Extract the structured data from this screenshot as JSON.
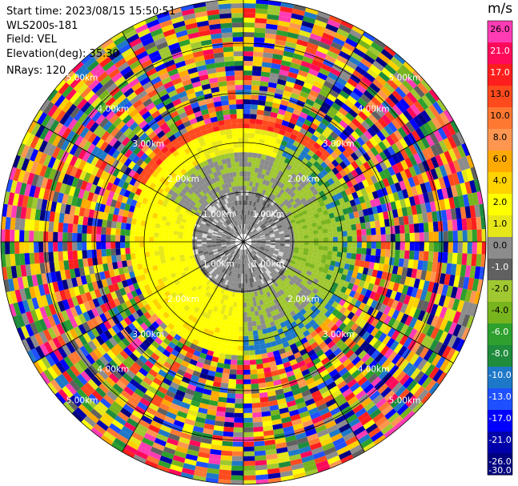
{
  "header": {
    "start_time": "Start time: 2023/08/15 15:50:51",
    "instrument": "WLS200s-181",
    "field": "Field: VEL",
    "elevation": "Elevation(deg): 35.30",
    "nrays": "NRays: 120"
  },
  "colorbar": {
    "unit": "m/s",
    "ticks": [
      "26.0",
      "21.0",
      "17.0",
      "13.0",
      "10.0",
      "8.0",
      "6.0",
      "4.0",
      "2.0",
      "1.0",
      "0.0",
      "-1.0",
      "-2.0",
      "-4.0",
      "-6.0",
      "-8.0",
      "-10.0",
      "-13.0",
      "-17.0",
      "-21.0",
      "-26.0",
      "-30.0"
    ],
    "colors": [
      "#ff3cb4",
      "#ff0a5a",
      "#ff1e1e",
      "#ff4a1e",
      "#ff7832",
      "#ff9650",
      "#ffaa00",
      "#ffd200",
      "#ffff00",
      "#e6e619",
      "#8c8c8c",
      "#606060",
      "#a0c830",
      "#78b41e",
      "#2da02d",
      "#1e8c3c",
      "#1e78c8",
      "#1e50ff",
      "#0000ff",
      "#0000aa",
      "#000080"
    ]
  },
  "chart_data": {
    "type": "heatmap",
    "subtype": "polar-ppi",
    "field": "VEL",
    "units": "m/s",
    "nrays": 120,
    "elevation_deg": 35.3,
    "range_rings_km": [
      "1.00km",
      "2.00km",
      "3.00km",
      "4.00km",
      "5.00km"
    ],
    "color_scale_levels": [
      26.0,
      21.0,
      17.0,
      13.0,
      10.0,
      8.0,
      6.0,
      4.0,
      2.0,
      1.0,
      0.0,
      -1.0,
      -2.0,
      -4.0,
      -6.0,
      -8.0,
      -10.0,
      -13.0,
      -17.0,
      -21.0,
      -26.0,
      -30.0
    ]
  }
}
